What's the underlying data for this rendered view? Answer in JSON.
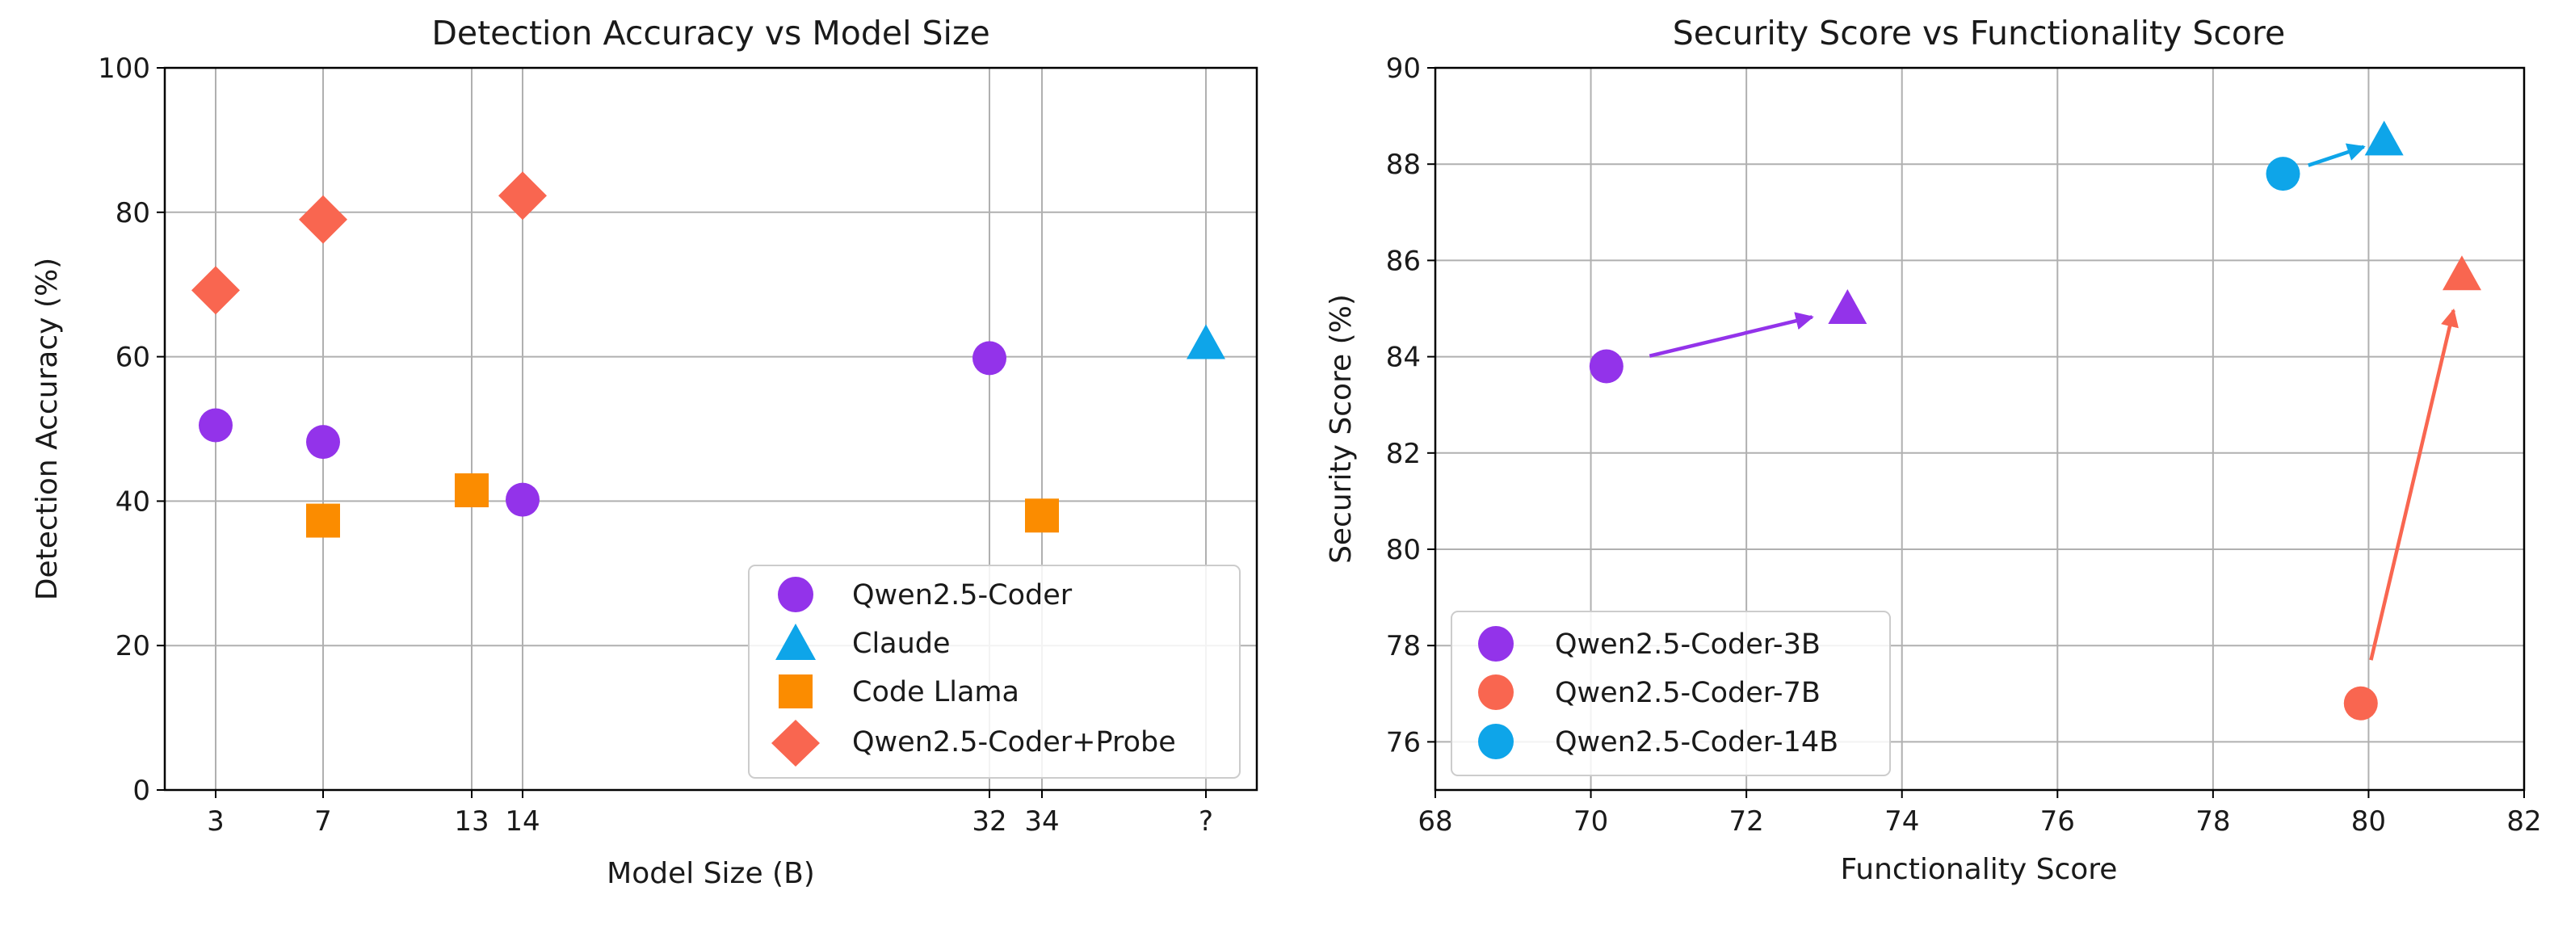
{
  "chart_data": [
    {
      "type": "scatter",
      "title": "Detection Accuracy vs Model Size",
      "xlabel": "Model Size (B)",
      "ylabel": "Detection Accuracy (%)",
      "ylim": [
        0,
        100
      ],
      "yticks": [
        0,
        20,
        40,
        60,
        80,
        100
      ],
      "x_categories": [
        "3",
        "7",
        "13",
        "14",
        "32",
        "34",
        "?"
      ],
      "grid": true,
      "legend_position": "lower-right",
      "series": [
        {
          "name": "Qwen2.5-Coder",
          "marker": "circle",
          "color": "#9333ea",
          "points": [
            {
              "x": "3",
              "y": 50.5
            },
            {
              "x": "7",
              "y": 48.2
            },
            {
              "x": "14",
              "y": 40.2
            },
            {
              "x": "32",
              "y": 59.8
            }
          ]
        },
        {
          "name": "Claude",
          "marker": "triangle",
          "color": "#0ea5e9",
          "points": [
            {
              "x": "?",
              "y": 61.8
            }
          ]
        },
        {
          "name": "Code Llama",
          "marker": "square",
          "color": "#fb8c00",
          "points": [
            {
              "x": "7",
              "y": 37.3
            },
            {
              "x": "13",
              "y": 41.5
            },
            {
              "x": "34",
              "y": 38.0
            }
          ]
        },
        {
          "name": "Qwen2.5-Coder+Probe",
          "marker": "diamond",
          "color": "#f96650",
          "points": [
            {
              "x": "3",
              "y": 69.2
            },
            {
              "x": "7",
              "y": 79.0
            },
            {
              "x": "14",
              "y": 82.3
            }
          ]
        }
      ]
    },
    {
      "type": "scatter",
      "title": "Security Score vs Functionality Score",
      "xlabel": "Functionality Score",
      "ylabel": "Security Score (%)",
      "xlim": [
        68,
        82
      ],
      "ylim": [
        75,
        90
      ],
      "xticks": [
        68,
        70,
        72,
        74,
        76,
        78,
        80,
        82
      ],
      "yticks": [
        76,
        78,
        80,
        82,
        84,
        86,
        88,
        90
      ],
      "grid": true,
      "legend_position": "lower-left",
      "series": [
        {
          "name": "Qwen2.5-Coder-3B",
          "color": "#9333ea",
          "before": {
            "x": 70.2,
            "y": 83.8
          },
          "after": {
            "x": 73.3,
            "y": 85.0
          }
        },
        {
          "name": "Qwen2.5-Coder-7B",
          "color": "#f96650",
          "before": {
            "x": 79.9,
            "y": 76.8
          },
          "after": {
            "x": 81.2,
            "y": 85.7
          }
        },
        {
          "name": "Qwen2.5-Coder-14B",
          "color": "#0ea5e9",
          "before": {
            "x": 78.9,
            "y": 87.8
          },
          "after": {
            "x": 80.2,
            "y": 88.5
          }
        }
      ]
    }
  ]
}
